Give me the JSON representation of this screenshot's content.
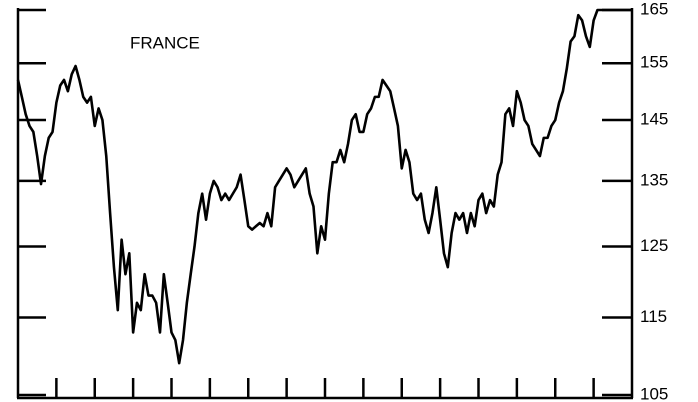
{
  "chart_data": {
    "type": "line",
    "title": "FRANCE",
    "values": [
      152,
      149,
      146,
      144,
      143,
      139,
      134.5,
      139,
      142,
      143,
      148,
      151,
      152,
      150,
      153,
      154.5,
      152,
      149,
      148,
      149,
      144,
      147,
      145,
      139,
      130,
      122,
      116,
      126,
      121,
      124,
      113,
      117,
      116,
      121,
      118,
      118,
      117,
      113,
      121,
      117,
      113,
      112,
      109,
      112,
      117,
      121,
      125,
      130,
      133,
      129,
      133,
      135,
      134,
      132,
      133,
      132,
      133,
      134,
      136,
      132,
      128,
      127.5,
      128,
      128.5,
      128,
      130,
      128,
      134,
      135,
      136,
      137,
      136,
      134,
      135,
      136,
      137,
      133,
      131,
      124,
      128,
      126,
      133,
      138,
      138,
      140,
      138,
      141,
      145,
      146,
      143,
      143,
      146,
      147,
      149,
      149,
      152,
      151,
      150,
      147,
      144,
      137,
      140,
      138,
      133,
      132,
      133,
      129,
      127,
      130,
      134,
      129,
      124,
      122,
      127,
      130,
      129,
      130,
      127,
      130,
      128,
      132,
      133,
      130,
      132,
      131,
      136,
      138,
      146,
      147,
      144,
      150,
      148,
      145,
      144,
      141,
      140,
      139,
      142,
      142,
      144,
      145,
      148,
      150,
      154,
      159,
      160,
      164,
      163,
      160,
      158,
      163,
      165,
      165,
      165,
      165,
      165,
      165,
      165,
      165,
      165,
      165
    ],
    "color": "#000000",
    "xlim": [
      0,
      160
    ],
    "xticks": [
      10,
      20,
      30,
      40,
      50,
      60,
      70,
      80,
      90,
      100,
      110,
      120,
      130,
      140,
      150
    ],
    "ylim": [
      105,
      165
    ],
    "yticks": [
      105,
      115,
      125,
      135,
      145,
      155,
      165
    ],
    "log_scale": true
  }
}
